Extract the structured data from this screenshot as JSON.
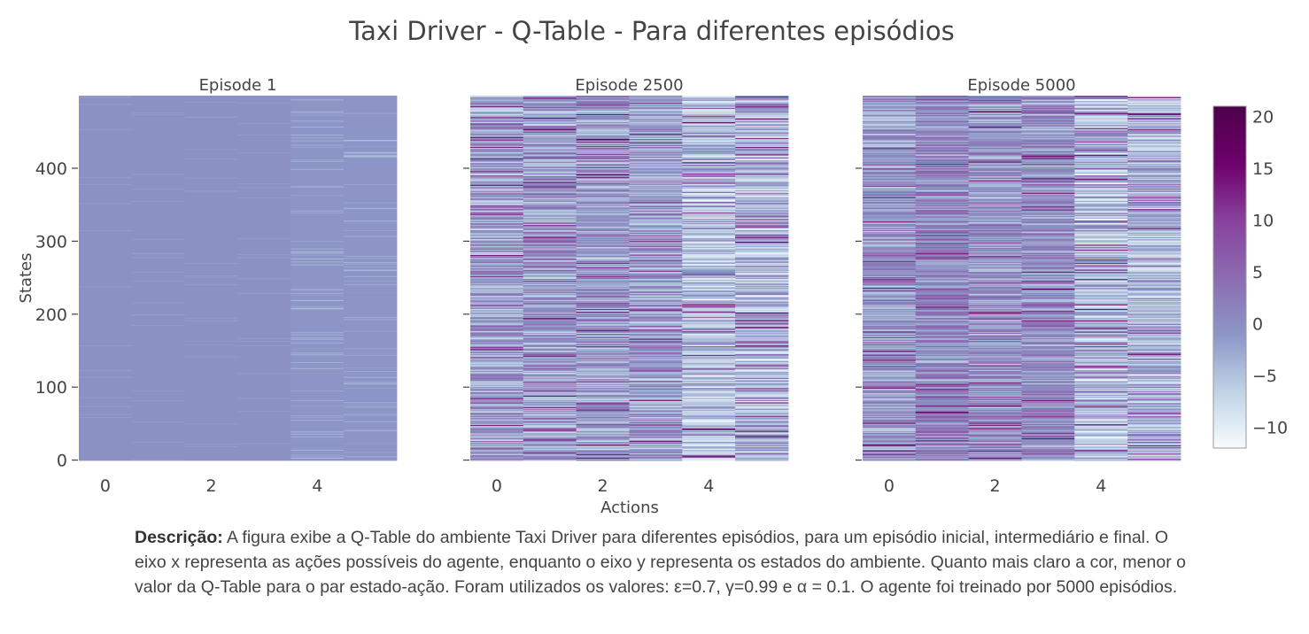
{
  "chart_data": {
    "type": "heatmap",
    "title": "Taxi Driver - Q-Table - Para diferentes episódios",
    "xlabel": "Actions",
    "ylabel": "States",
    "x_ticks": [
      "0",
      "2",
      "4"
    ],
    "y_ticks": [
      "0",
      "100",
      "200",
      "300",
      "400"
    ],
    "x_range": [
      -0.5,
      5.5
    ],
    "y_range": [
      -0.5,
      499.5
    ],
    "n_actions": 6,
    "n_states": 500,
    "colorscale": [
      "#f7fcfd",
      "#bfd3e6",
      "#8c96c6",
      "#8c6bb1",
      "#88419d",
      "#6e016b",
      "#4d004b"
    ],
    "colorbar": {
      "ticks": [
        "20",
        "15",
        "10",
        "5",
        "0",
        "−5",
        "−10"
      ],
      "range": [
        -12,
        21
      ]
    },
    "panels": [
      {
        "name": "Episode 1",
        "mean_q_by_action": [
          -0.3,
          -0.3,
          -0.3,
          -0.3,
          -1.0,
          -1.0
        ],
        "peak_q": 0
      },
      {
        "name": "Episode 2500",
        "mean_q_by_action": [
          -2.5,
          -2.0,
          -2.0,
          -2.0,
          -6.0,
          -5.0
        ],
        "peak_q": 20
      },
      {
        "name": "Episode 5000",
        "mean_q_by_action": [
          -1.5,
          0.5,
          -1.0,
          -0.5,
          -5.5,
          -4.5
        ],
        "peak_q": 20
      }
    ]
  },
  "description": {
    "label": "Descrição:",
    "text": " A figura exibe a Q-Table do ambiente Taxi Driver para diferentes episódios, para um episódio inicial, intermediário e final. O eixo x representa as ações possíveis do agente, enquanto o eixo y representa os estados do ambiente. Quanto mais claro a cor, menor o valor da Q-Table para o par estado-ação. Foram utilizados os valores: ε=0.7, γ=0.99 e α = 0.1. O agente foi treinado por 5000 episódios."
  }
}
